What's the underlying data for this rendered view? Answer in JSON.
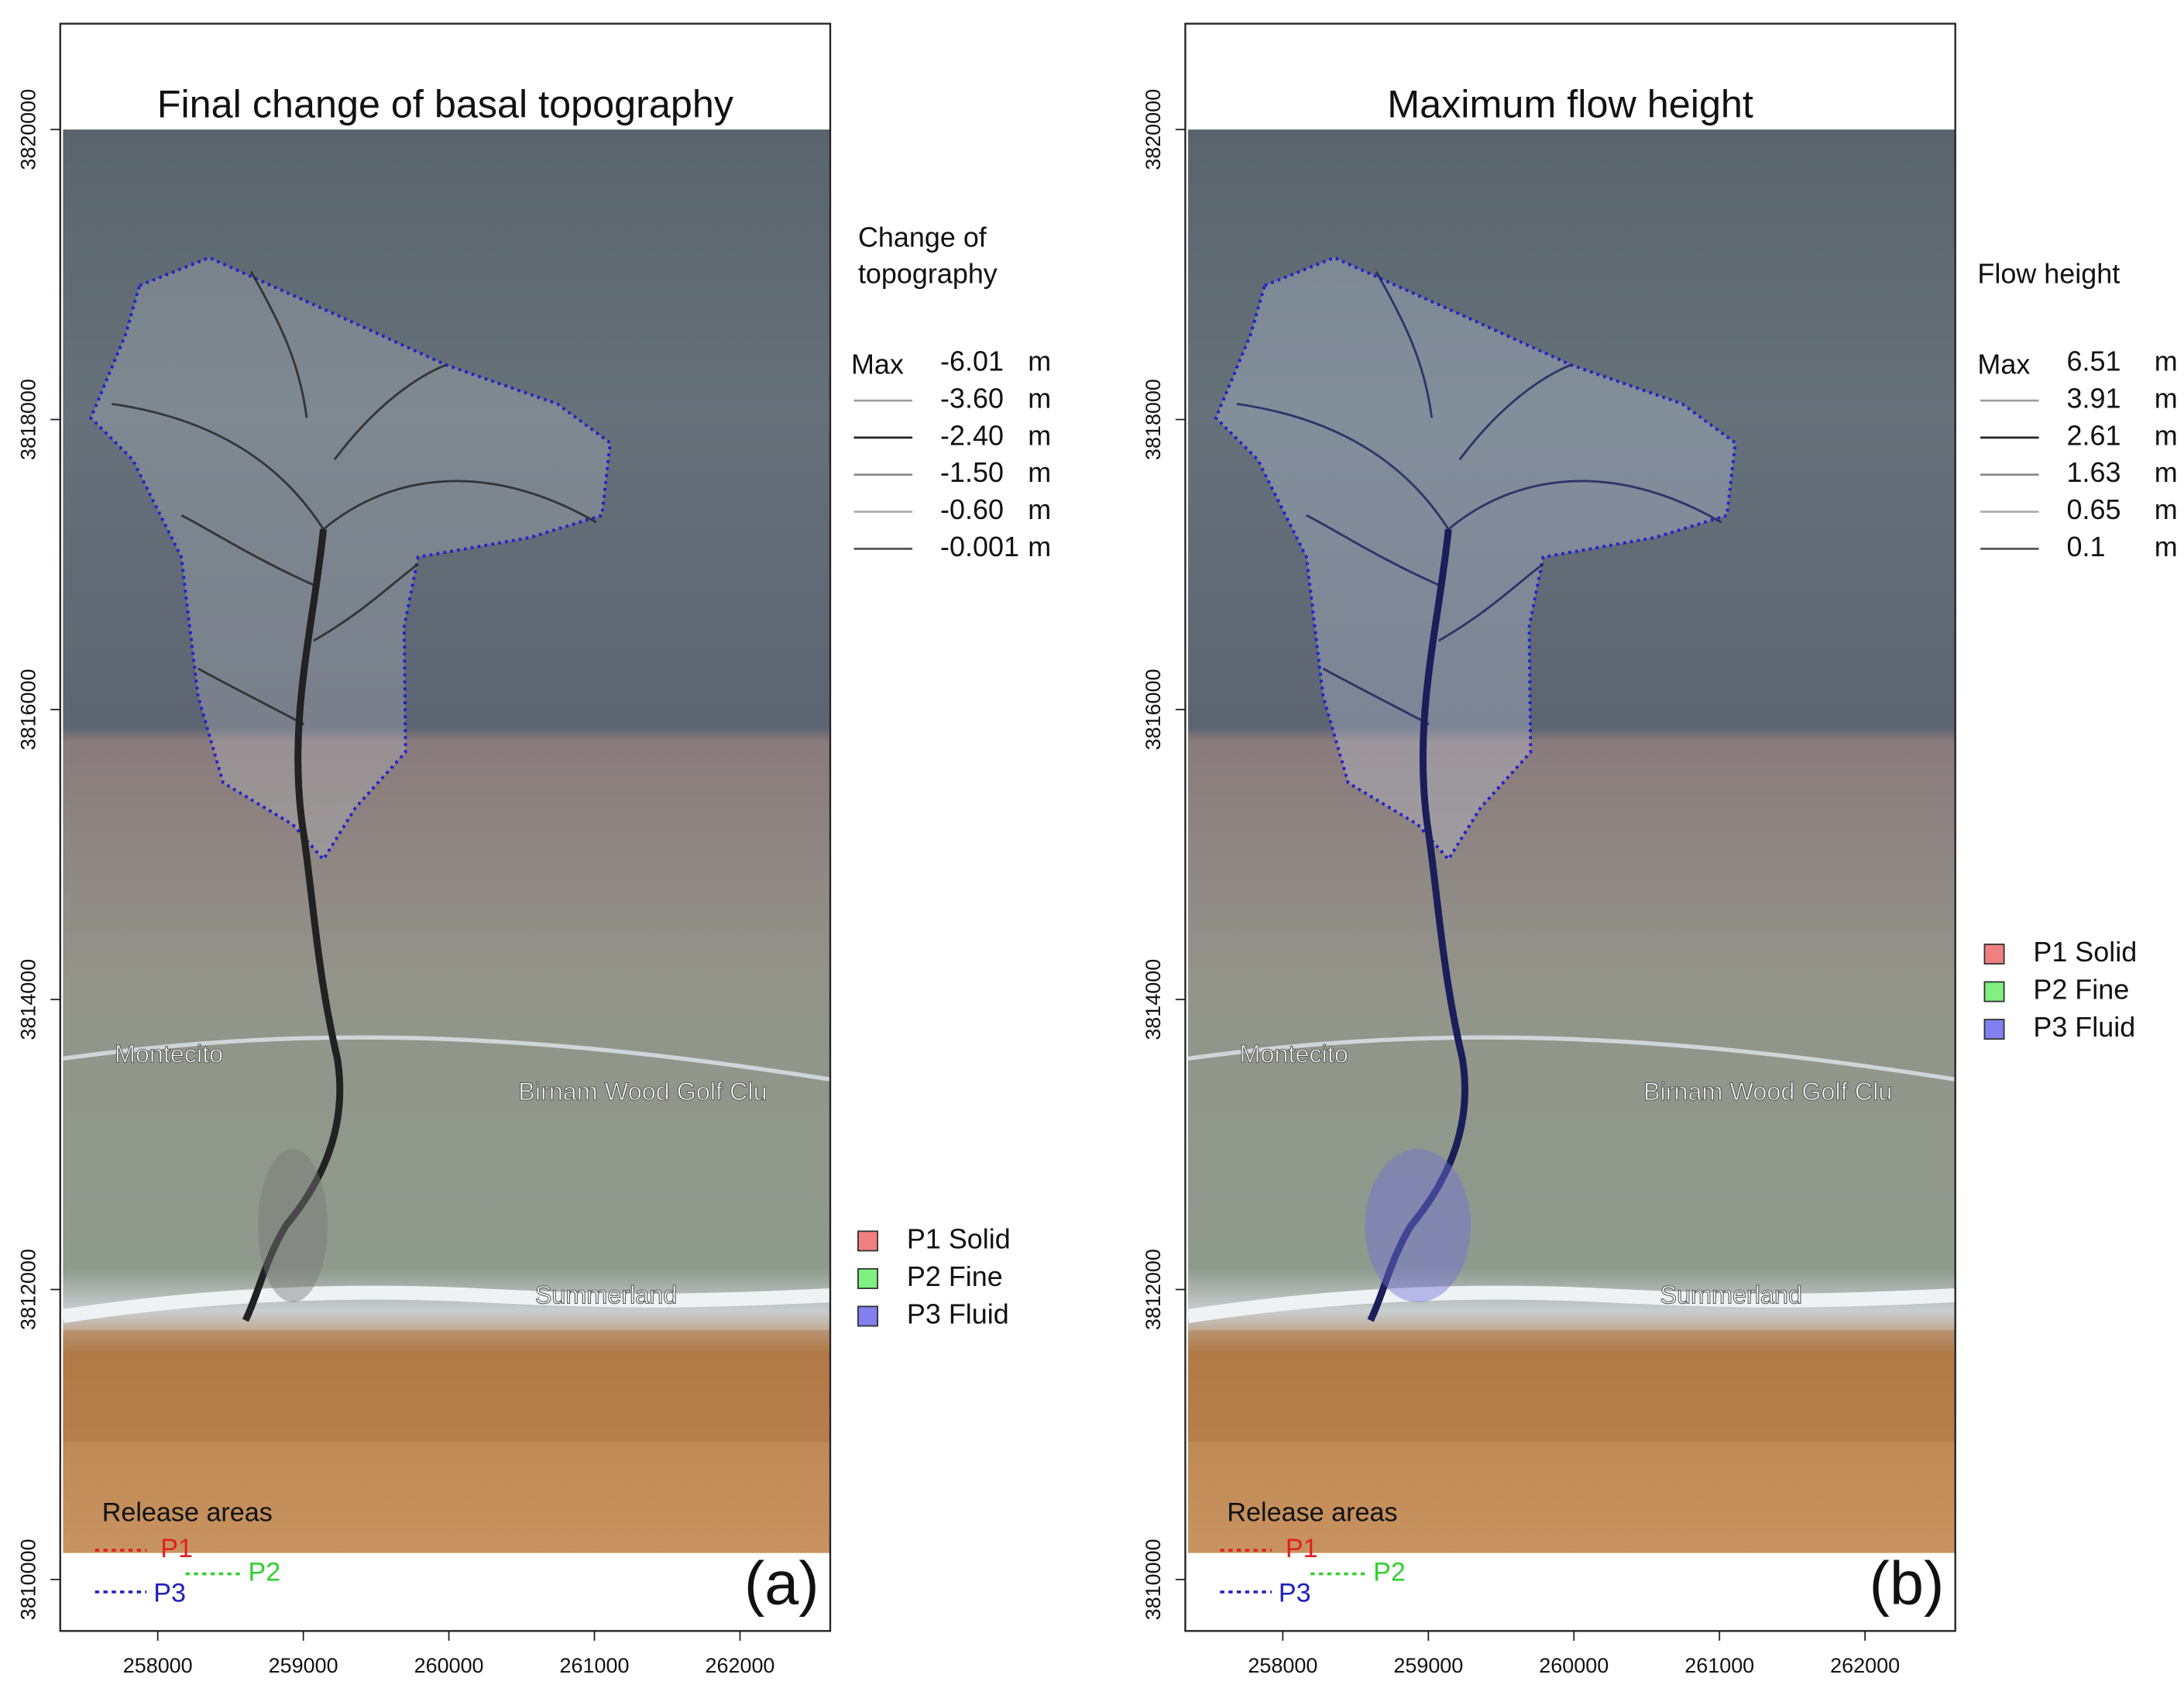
{
  "panels": [
    {
      "title": "Final change of basal topography",
      "legend_title": [
        "Change of",
        "topography"
      ],
      "legend_max": "Max",
      "legend_values": [
        "-6.01",
        "-3.60",
        "-2.40",
        "-1.50",
        "-0.60",
        "-0.001"
      ],
      "panel_label": "(a)"
    },
    {
      "title": "Maximum flow height",
      "legend_title": [
        "Flow height"
      ],
      "legend_max": "Max",
      "legend_values": [
        "6.51",
        "3.91",
        "2.61",
        "1.63",
        "0.65",
        "0.1"
      ],
      "panel_label": "(b)"
    }
  ],
  "unit": "m",
  "xlim": [
    257330,
    262620
  ],
  "ylim": [
    3809645,
    3820730
  ],
  "xticks": [
    258000,
    259000,
    260000,
    261000,
    262000
  ],
  "yticks": [
    3810000,
    3812000,
    3814000,
    3816000,
    3818000,
    3820000
  ],
  "materials": [
    {
      "name": "P1 Solid",
      "color": "#f08080"
    },
    {
      "name": "P2 Fine",
      "color": "#80f080"
    },
    {
      "name": "P3 Fluid",
      "color": "#8080f0"
    }
  ],
  "release_title": "Release areas",
  "release": [
    {
      "name": "P1",
      "color": "#e02020"
    },
    {
      "name": "P2",
      "color": "#30d030"
    },
    {
      "name": "P3",
      "color": "#2020c0"
    }
  ],
  "place_labels": [
    "Montecito",
    "Birnam Wood Golf Clu",
    "Summerland"
  ]
}
